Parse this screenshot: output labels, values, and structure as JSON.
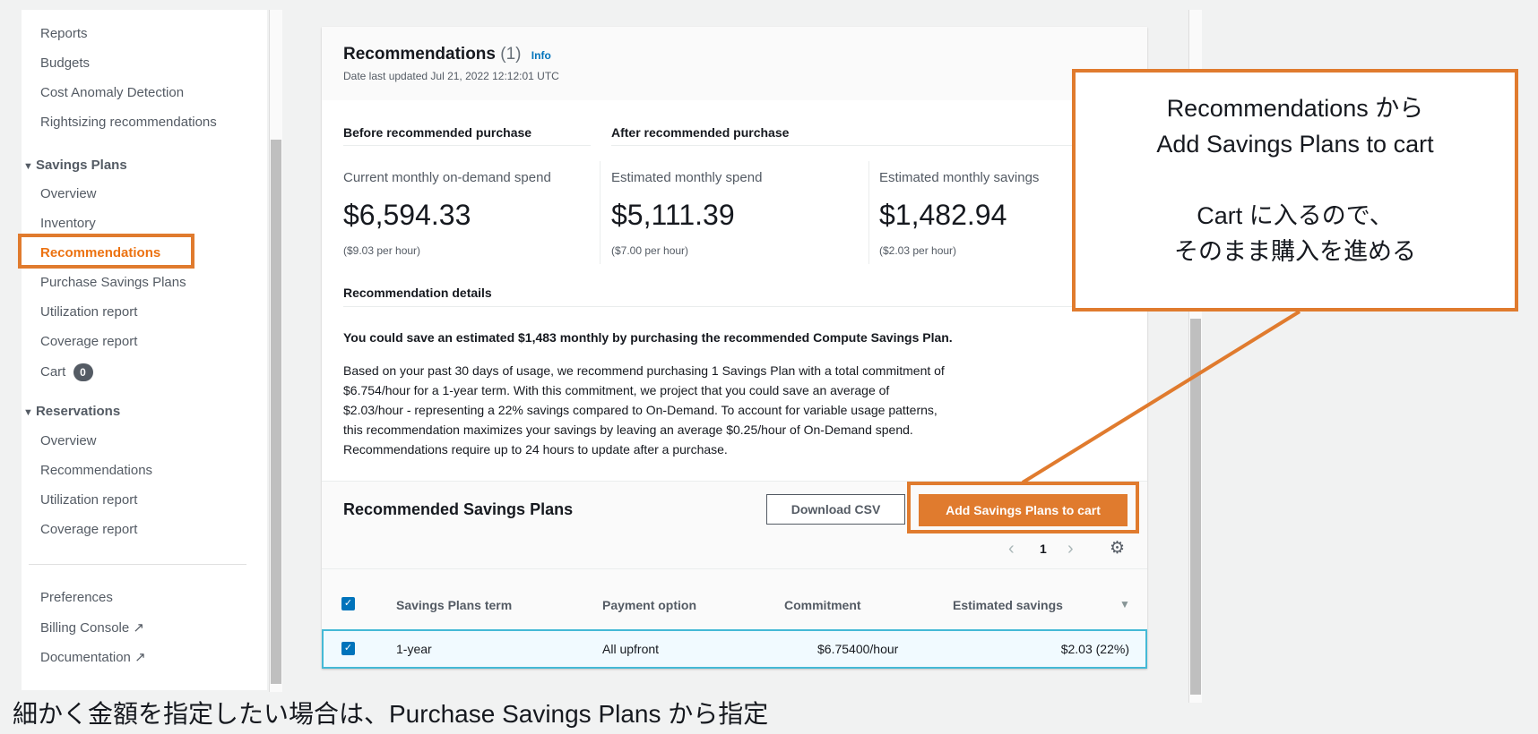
{
  "sidebar": {
    "items": [
      "Reports",
      "Budgets",
      "Cost Anomaly Detection",
      "Rightsizing recommendations"
    ],
    "savings_plans": {
      "header": "Savings Plans",
      "items": [
        "Overview",
        "Inventory",
        "Recommendations",
        "Purchase Savings Plans",
        "Utilization report",
        "Coverage report",
        "Cart"
      ],
      "cart_count": "0"
    },
    "reservations": {
      "header": "Reservations",
      "items": [
        "Overview",
        "Recommendations",
        "Utilization report",
        "Coverage report"
      ]
    },
    "footer": [
      "Preferences",
      "Billing Console",
      "Documentation"
    ]
  },
  "main": {
    "title": "Recommendations",
    "count": "(1)",
    "info": "Info",
    "updated": "Date last updated Jul 21, 2022 12:12:01 UTC",
    "before_label": "Before recommended purchase",
    "after_label": "After recommended purchase",
    "metrics": [
      {
        "label": "Current monthly on-demand spend",
        "value": "$6,594.33",
        "hourly": "($9.03 per hour)"
      },
      {
        "label": "Estimated monthly spend",
        "value": "$5,111.39",
        "hourly": "($7.00 per hour)"
      },
      {
        "label": "Estimated monthly savings",
        "value": "$1,482.94",
        "hourly": "($2.03 per hour)"
      }
    ],
    "details_label": "Recommendation details",
    "headline": "You could save an estimated $1,483 monthly by purchasing the recommended Compute Savings Plan.",
    "paragraph": [
      "Based on your past 30 days of usage, we recommend purchasing 1 Savings Plan with a total commitment of",
      "$6.754/hour for a 1-year term. With this commitment, we project that you could save an average of",
      "$2.03/hour - representing a 22% savings compared to On-Demand. To account for variable usage patterns,",
      "this recommendation maximizes your savings by leaving an average $0.25/hour of On-Demand spend.",
      "Recommendations require up to 24 hours to update after a purchase."
    ],
    "table_title": "Recommended Savings Plans",
    "download": "Download CSV",
    "add": "Add Savings Plans to cart",
    "page": "1",
    "columns": [
      "Savings Plans term",
      "Payment option",
      "Commitment",
      "Estimated savings"
    ],
    "row": [
      "1-year",
      "All upfront",
      "$6.75400/hour",
      "$2.03 (22%)"
    ]
  },
  "callout": {
    "line1": "Recommendations から",
    "line2": "Add Savings Plans to cart",
    "line3": "Cart に入るので、",
    "line4": "そのまま購入を進める"
  },
  "caption": "細かく金額を指定したい場合は、Purchase Savings Plans から指定",
  "colors": {
    "accent": "#ec7211",
    "annotation": "#e07b2e",
    "link": "#0073bb"
  }
}
